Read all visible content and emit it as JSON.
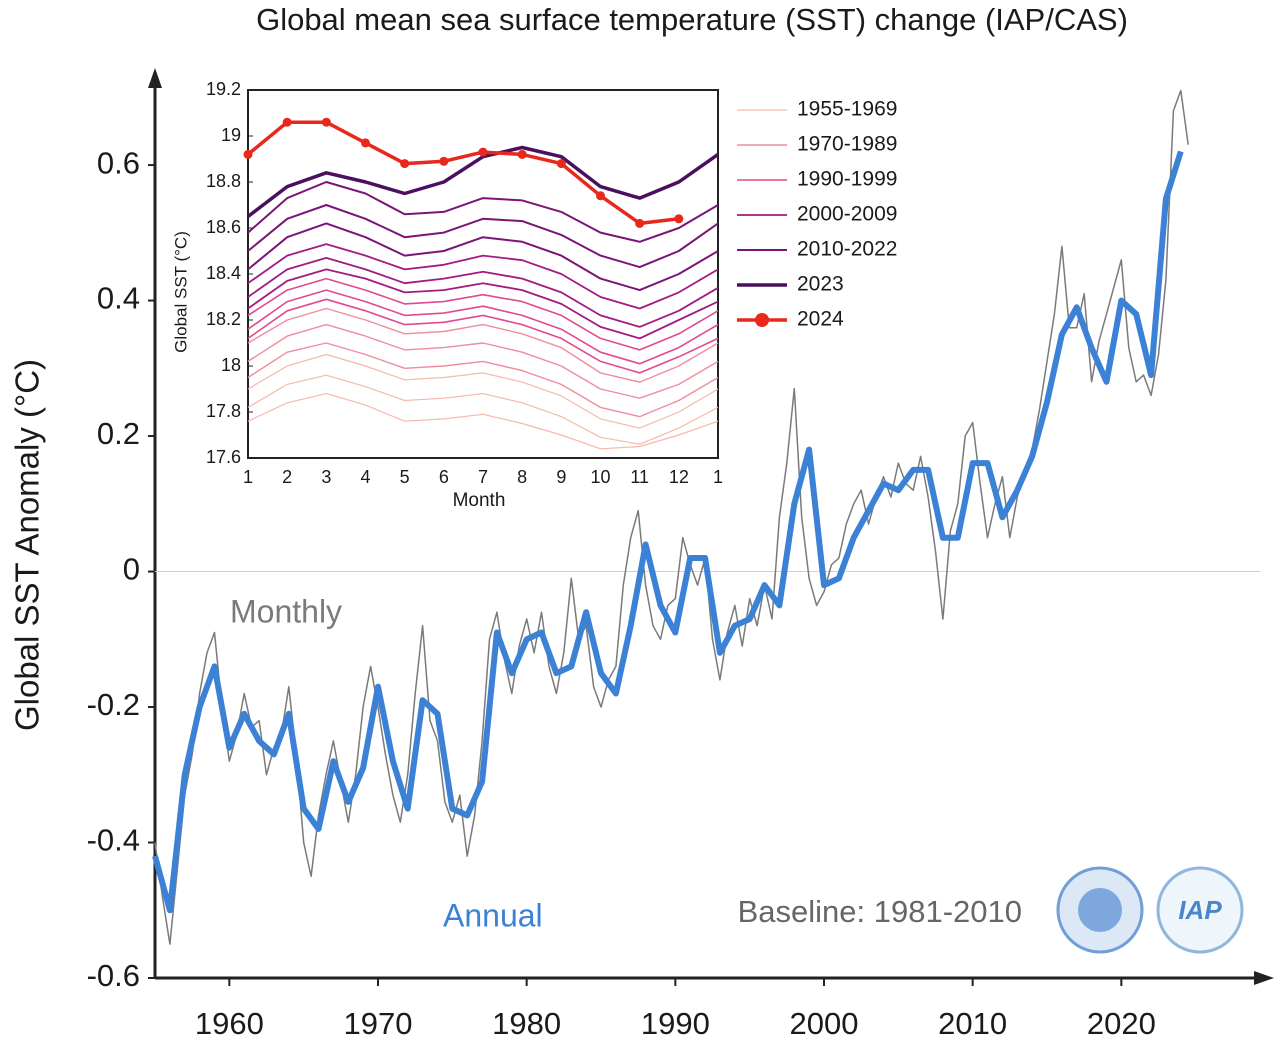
{
  "chart_data": [
    {
      "type": "line",
      "title": "Global mean sea surface temperature (SST) change (IAP/CAS)",
      "y_label": "Global SST Anomaly (°C)",
      "annotation": "Baseline: 1981-2010",
      "logo_text": "IAP",
      "xlim": [
        1955,
        2030
      ],
      "ylim": [
        -0.6,
        0.73
      ],
      "xticks": [
        1960,
        1970,
        1980,
        1990,
        2000,
        2010,
        2020
      ],
      "yticks": [
        -0.6,
        -0.4,
        -0.2,
        0,
        0.2,
        0.4,
        0.6
      ],
      "zero_line": true,
      "series": [
        {
          "name": "Monthly",
          "color": "#7a7a7a",
          "width": 1.5,
          "x": [
            1955,
            1955.5,
            1956,
            1956.5,
            1957,
            1957.5,
            1958,
            1958.5,
            1959,
            1959.5,
            1960,
            1960.5,
            1961,
            1961.5,
            1962,
            1962.5,
            1963,
            1963.5,
            1964,
            1964.5,
            1965,
            1965.5,
            1966,
            1966.5,
            1967,
            1967.5,
            1968,
            1968.5,
            1969,
            1969.5,
            1970,
            1970.5,
            1971,
            1971.5,
            1972,
            1972.5,
            1973,
            1973.5,
            1974,
            1974.5,
            1975,
            1975.5,
            1976,
            1976.5,
            1977,
            1977.5,
            1978,
            1978.5,
            1979,
            1979.5,
            1980,
            1980.5,
            1981,
            1981.5,
            1982,
            1982.5,
            1983,
            1983.5,
            1984,
            1984.5,
            1985,
            1985.5,
            1986,
            1986.5,
            1987,
            1987.5,
            1988,
            1988.5,
            1989,
            1989.5,
            1990,
            1990.5,
            1991,
            1991.5,
            1992,
            1992.5,
            1993,
            1993.5,
            1994,
            1994.5,
            1995,
            1995.5,
            1996,
            1996.5,
            1997,
            1997.5,
            1998,
            1998.5,
            1999,
            1999.5,
            2000,
            2000.5,
            2001,
            2001.5,
            2002,
            2002.5,
            2003,
            2003.5,
            2004,
            2004.5,
            2005,
            2005.5,
            2006,
            2006.5,
            2007,
            2007.5,
            2008,
            2008.5,
            2009,
            2009.5,
            2010,
            2010.5,
            2011,
            2011.5,
            2012,
            2012.5,
            2013,
            2013.5,
            2014,
            2014.5,
            2015,
            2015.5,
            2016,
            2016.5,
            2017,
            2017.5,
            2018,
            2018.5,
            2019,
            2019.5,
            2020,
            2020.5,
            2021,
            2021.5,
            2022,
            2022.5,
            2023,
            2023.5,
            2024,
            2024.5
          ],
          "values": [
            -0.4,
            -0.48,
            -0.55,
            -0.44,
            -0.33,
            -0.27,
            -0.18,
            -0.12,
            -0.09,
            -0.2,
            -0.28,
            -0.24,
            -0.18,
            -0.23,
            -0.22,
            -0.3,
            -0.26,
            -0.24,
            -0.17,
            -0.27,
            -0.4,
            -0.45,
            -0.36,
            -0.3,
            -0.25,
            -0.31,
            -0.37,
            -0.3,
            -0.2,
            -0.14,
            -0.2,
            -0.27,
            -0.33,
            -0.37,
            -0.3,
            -0.18,
            -0.08,
            -0.22,
            -0.25,
            -0.34,
            -0.37,
            -0.33,
            -0.42,
            -0.36,
            -0.25,
            -0.1,
            -0.06,
            -0.13,
            -0.18,
            -0.11,
            -0.07,
            -0.12,
            -0.06,
            -0.14,
            -0.18,
            -0.12,
            -0.01,
            -0.1,
            -0.08,
            -0.17,
            -0.2,
            -0.16,
            -0.14,
            -0.02,
            0.05,
            0.09,
            -0.02,
            -0.08,
            -0.1,
            -0.05,
            -0.04,
            0.05,
            0.01,
            -0.02,
            0.02,
            -0.1,
            -0.16,
            -0.09,
            -0.05,
            -0.11,
            -0.04,
            -0.08,
            -0.02,
            -0.07,
            0.08,
            0.16,
            0.27,
            0.08,
            -0.01,
            -0.05,
            -0.03,
            0.01,
            0.02,
            0.07,
            0.1,
            0.12,
            0.07,
            0.11,
            0.14,
            0.11,
            0.16,
            0.13,
            0.12,
            0.17,
            0.11,
            0.03,
            -0.07,
            0.06,
            0.1,
            0.2,
            0.22,
            0.13,
            0.05,
            0.1,
            0.14,
            0.05,
            0.11,
            0.15,
            0.18,
            0.24,
            0.31,
            0.38,
            0.48,
            0.36,
            0.36,
            0.41,
            0.28,
            0.34,
            0.38,
            0.42,
            0.46,
            0.33,
            0.28,
            0.29,
            0.26,
            0.32,
            0.43,
            0.68,
            0.71,
            0.63
          ]
        },
        {
          "name": "Annual",
          "color": "#3b82d6",
          "width": 6,
          "x": [
            1955,
            1956,
            1957,
            1958,
            1959,
            1960,
            1961,
            1962,
            1963,
            1964,
            1965,
            1966,
            1967,
            1968,
            1969,
            1970,
            1971,
            1972,
            1973,
            1974,
            1975,
            1976,
            1977,
            1978,
            1979,
            1980,
            1981,
            1982,
            1983,
            1984,
            1985,
            1986,
            1987,
            1988,
            1989,
            1990,
            1991,
            1992,
            1993,
            1994,
            1995,
            1996,
            1997,
            1998,
            1999,
            2000,
            2001,
            2002,
            2003,
            2004,
            2005,
            2006,
            2007,
            2008,
            2009,
            2010,
            2011,
            2012,
            2013,
            2014,
            2015,
            2016,
            2017,
            2018,
            2019,
            2020,
            2021,
            2022,
            2023,
            2024
          ],
          "values": [
            -0.42,
            -0.5,
            -0.3,
            -0.2,
            -0.14,
            -0.26,
            -0.21,
            -0.25,
            -0.27,
            -0.21,
            -0.35,
            -0.38,
            -0.28,
            -0.34,
            -0.29,
            -0.17,
            -0.28,
            -0.35,
            -0.19,
            -0.21,
            -0.35,
            -0.36,
            -0.31,
            -0.09,
            -0.15,
            -0.1,
            -0.09,
            -0.15,
            -0.14,
            -0.06,
            -0.15,
            -0.18,
            -0.08,
            0.04,
            -0.05,
            -0.09,
            0.02,
            0.02,
            -0.12,
            -0.08,
            -0.07,
            -0.02,
            -0.05,
            0.1,
            0.18,
            -0.02,
            -0.01,
            0.05,
            0.09,
            0.13,
            0.12,
            0.15,
            0.15,
            0.05,
            0.05,
            0.16,
            0.16,
            0.08,
            0.12,
            0.17,
            0.25,
            0.35,
            0.39,
            0.33,
            0.28,
            0.4,
            0.38,
            0.29,
            0.55,
            0.62
          ]
        }
      ]
    },
    {
      "type": "line",
      "x_label": "Month",
      "y_label": "Global SST (°C)",
      "categories": [
        "1",
        "2",
        "3",
        "4",
        "5",
        "6",
        "7",
        "8",
        "9",
        "10",
        "11",
        "12",
        "1"
      ],
      "ylim": [
        17.6,
        19.2
      ],
      "yticks": [
        17.6,
        17.8,
        18,
        18.2,
        18.4,
        18.6,
        18.8,
        19,
        19.2
      ],
      "series": [
        {
          "name": "1955-1969",
          "color": "#f6b9a9",
          "width": 1.2,
          "values": [
            [
              17.9,
              18.0,
              18.05,
              18.0,
              17.94,
              17.95,
              17.97,
              17.93,
              17.87,
              17.77,
              17.73,
              17.8,
              17.9
            ],
            [
              17.82,
              17.92,
              17.96,
              17.91,
              17.85,
              17.86,
              17.88,
              17.84,
              17.78,
              17.69,
              17.66,
              17.73,
              17.82
            ],
            [
              17.76,
              17.84,
              17.88,
              17.83,
              17.76,
              17.77,
              17.79,
              17.75,
              17.7,
              17.64,
              17.65,
              17.7,
              17.76
            ]
          ]
        },
        {
          "name": "1970-1989",
          "color": "#f08c9c",
          "width": 1.4,
          "values": [
            [
              18.1,
              18.2,
              18.25,
              18.2,
              18.14,
              18.15,
              18.18,
              18.14,
              18.08,
              17.97,
              17.93,
              18.0,
              18.1
            ],
            [
              18.02,
              18.13,
              18.18,
              18.13,
              18.07,
              18.08,
              18.1,
              18.06,
              18.0,
              17.9,
              17.86,
              17.92,
              18.02
            ],
            [
              17.95,
              18.06,
              18.1,
              18.05,
              17.99,
              18.0,
              18.02,
              17.98,
              17.92,
              17.82,
              17.78,
              17.85,
              17.95
            ]
          ]
        },
        {
          "name": "1990-1999",
          "color": "#e2498f",
          "width": 1.6,
          "values": [
            [
              18.22,
              18.33,
              18.38,
              18.33,
              18.27,
              18.28,
              18.31,
              18.28,
              18.22,
              18.12,
              18.07,
              18.14,
              18.24
            ],
            [
              18.16,
              18.28,
              18.33,
              18.28,
              18.22,
              18.23,
              18.26,
              18.22,
              18.16,
              18.06,
              18.01,
              18.08,
              18.18
            ],
            [
              18.12,
              18.24,
              18.29,
              18.24,
              18.18,
              18.19,
              18.22,
              18.18,
              18.12,
              18.02,
              17.97,
              18.04,
              18.12
            ]
          ]
        },
        {
          "name": "2000-2009",
          "color": "#a31a80",
          "width": 1.8,
          "values": [
            [
              18.36,
              18.48,
              18.53,
              18.48,
              18.42,
              18.44,
              18.48,
              18.46,
              18.4,
              18.3,
              18.25,
              18.32,
              18.42
            ],
            [
              18.3,
              18.42,
              18.47,
              18.42,
              18.36,
              18.38,
              18.41,
              18.38,
              18.32,
              18.22,
              18.17,
              18.24,
              18.34
            ],
            [
              18.25,
              18.37,
              18.42,
              18.38,
              18.32,
              18.33,
              18.36,
              18.33,
              18.27,
              18.17,
              18.12,
              18.2,
              18.28
            ]
          ]
        },
        {
          "name": "2010-2022",
          "color": "#7c1478",
          "width": 2,
          "values": [
            [
              18.58,
              18.73,
              18.8,
              18.75,
              18.66,
              18.67,
              18.73,
              18.72,
              18.67,
              18.58,
              18.54,
              18.6,
              18.7
            ],
            [
              18.5,
              18.64,
              18.7,
              18.64,
              18.56,
              18.58,
              18.64,
              18.63,
              18.57,
              18.48,
              18.43,
              18.5,
              18.62
            ],
            [
              18.42,
              18.56,
              18.62,
              18.56,
              18.48,
              18.5,
              18.56,
              18.54,
              18.48,
              18.38,
              18.33,
              18.4,
              18.5
            ]
          ]
        },
        {
          "name": "2023",
          "color": "#4a0f5e",
          "width": 3.5,
          "values": [
            [
              18.65,
              18.78,
              18.84,
              18.8,
              18.75,
              18.8,
              18.91,
              18.95,
              18.91,
              18.78,
              18.73,
              18.8,
              18.92
            ]
          ]
        },
        {
          "name": "2024",
          "color": "#e8281b",
          "width": 3.5,
          "marker": true,
          "values": [
            [
              18.92,
              19.06,
              19.06,
              18.97,
              18.88,
              18.89,
              18.93,
              18.92,
              18.88,
              18.74,
              18.62,
              18.64,
              null
            ]
          ]
        }
      ]
    }
  ]
}
